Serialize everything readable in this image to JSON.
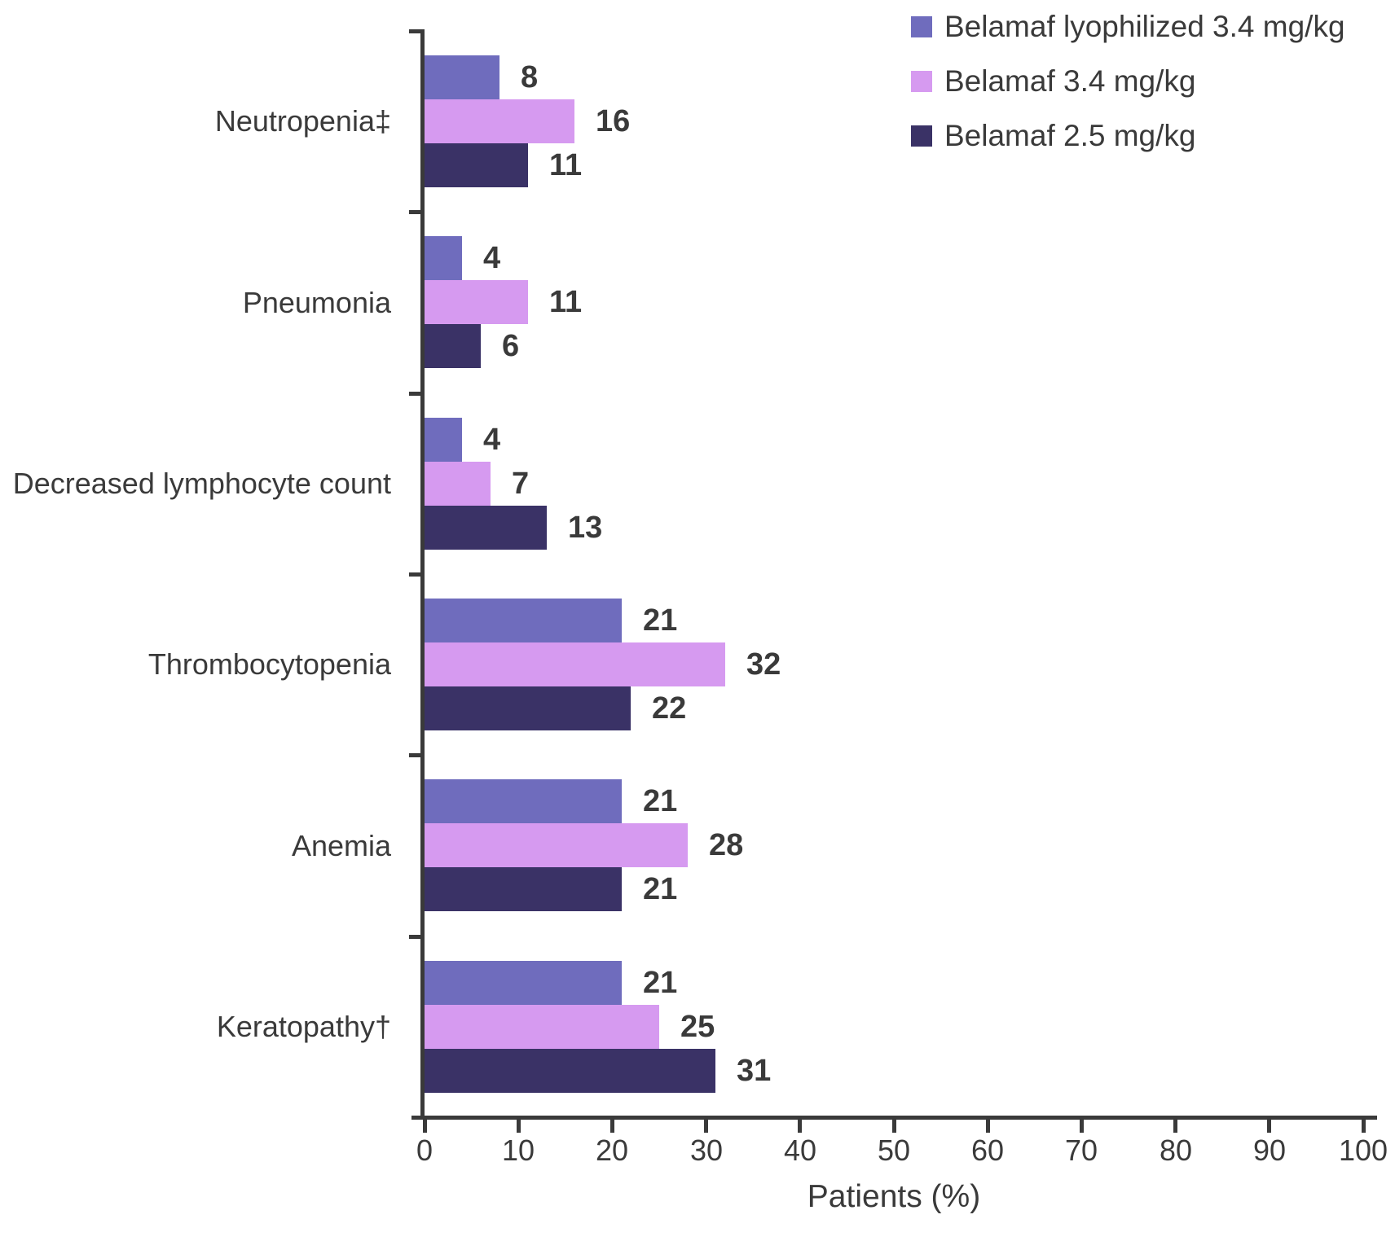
{
  "chart_data": {
    "type": "bar",
    "orientation": "horizontal",
    "title": "",
    "categories": [
      "Neutropenia‡",
      "Pneumonia",
      "Decreased lymphocyte count",
      "Thrombocytopenia",
      "Anemia",
      "Keratopathy†"
    ],
    "series": [
      {
        "name": "Belamaf lyophilized 3.4 mg/kg",
        "color": "#6f6cbd",
        "values": [
          8,
          4,
          4,
          21,
          21,
          21
        ]
      },
      {
        "name": "Belamaf 3.4 mg/kg",
        "color": "#d69af0",
        "values": [
          16,
          11,
          7,
          32,
          28,
          25
        ]
      },
      {
        "name": "Belamaf 2.5 mg/kg",
        "color": "#3a3266",
        "values": [
          11,
          6,
          13,
          22,
          21,
          31
        ]
      }
    ],
    "xlabel": "Patients (%)",
    "xlim": [
      0,
      100
    ],
    "x_ticks": [
      0,
      10,
      20,
      30,
      40,
      50,
      60,
      70,
      80,
      90,
      100
    ],
    "value_labels": true,
    "legend_position": "top-right",
    "grid": false
  },
  "colors": {
    "axis": "#3a3a3a",
    "text": "#3a3a3a",
    "background": "#ffffff"
  }
}
